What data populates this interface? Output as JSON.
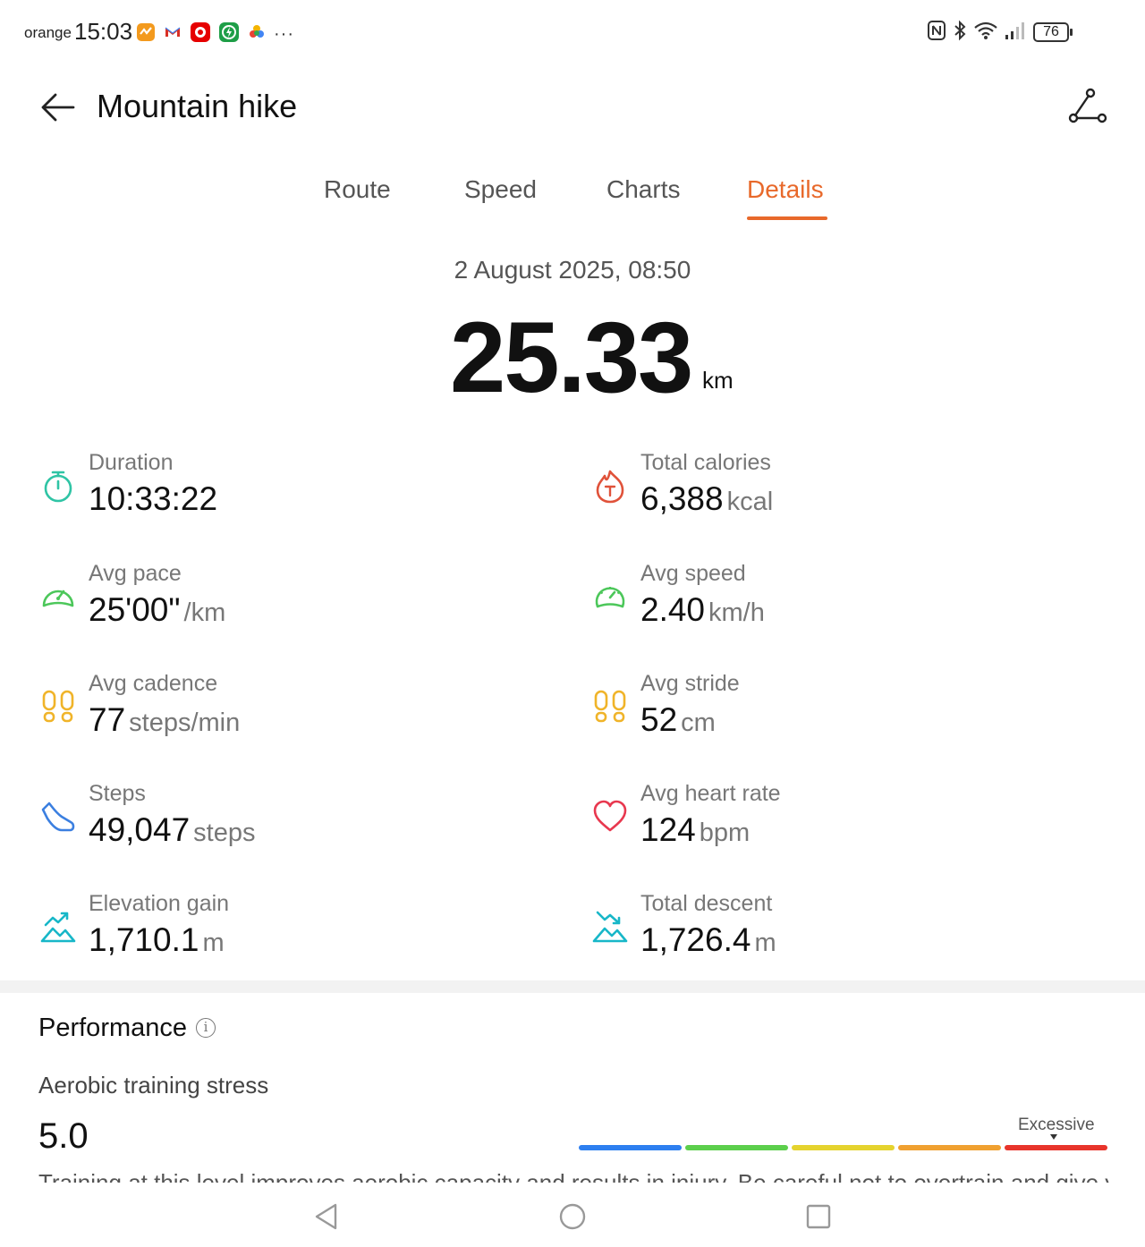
{
  "status_bar": {
    "carrier": "orange",
    "time": "15:03",
    "battery": "76",
    "notif_icons": [
      "fitness-app-icon",
      "gmail-icon",
      "vodafone-icon",
      "charging-app-icon",
      "photos-icon",
      "more-dots-icon"
    ],
    "system_icons": [
      "nfc-icon",
      "bluetooth-icon",
      "wifi-icon",
      "signal-icon"
    ]
  },
  "header": {
    "title": "Mountain hike"
  },
  "tabs": [
    {
      "label": "Route",
      "active": false
    },
    {
      "label": "Speed",
      "active": false
    },
    {
      "label": "Charts",
      "active": false
    },
    {
      "label": "Details",
      "active": true
    }
  ],
  "summary": {
    "date": "2 August 2025, 08:50",
    "distance": "25.33",
    "distance_unit": "km"
  },
  "metrics": [
    {
      "key": "duration",
      "label": "Duration",
      "value": "10:33:22",
      "unit": "",
      "icon": "stopwatch-icon",
      "color": "#2fc4a5"
    },
    {
      "key": "total-calories",
      "label": "Total calories",
      "value": "6,388",
      "unit": "kcal",
      "icon": "flame-icon",
      "color": "#e0523a"
    },
    {
      "key": "avg-pace",
      "label": "Avg pace",
      "value": "25'00\"",
      "unit": "/km",
      "icon": "gauge-icon",
      "color": "#4cc75a"
    },
    {
      "key": "avg-speed",
      "label": "Avg speed",
      "value": "2.40",
      "unit": "km/h",
      "icon": "speedometer-icon",
      "color": "#4cc75a"
    },
    {
      "key": "avg-cadence",
      "label": "Avg cadence",
      "value": "77",
      "unit": "steps/min",
      "icon": "footprints-icon",
      "color": "#f0b429"
    },
    {
      "key": "avg-stride",
      "label": "Avg stride",
      "value": "52",
      "unit": "cm",
      "icon": "footprints-icon",
      "color": "#f0b429"
    },
    {
      "key": "steps",
      "label": "Steps",
      "value": "49,047",
      "unit": "steps",
      "icon": "shoe-icon",
      "color": "#3b7fe0"
    },
    {
      "key": "avg-heart-rate",
      "label": "Avg heart rate",
      "value": "124",
      "unit": "bpm",
      "icon": "heart-icon",
      "color": "#e8384f"
    },
    {
      "key": "elevation-gain",
      "label": "Elevation gain",
      "value": "1,710.1",
      "unit": "m",
      "icon": "elevation-up-icon",
      "color": "#17b7c8"
    },
    {
      "key": "total-descent",
      "label": "Total descent",
      "value": "1,726.4",
      "unit": "m",
      "icon": "elevation-down-icon",
      "color": "#17b7c8"
    }
  ],
  "performance": {
    "title": "Performance",
    "info_icon": "info-icon",
    "aerobic_label": "Aerobic training stress",
    "aerobic_value": "5.0",
    "scale_label": "Excessive",
    "scale_colors": [
      "#2d7ff0",
      "#5ccf4c",
      "#e5d32e",
      "#f0a030",
      "#e8342b"
    ],
    "scale_level": 5,
    "cut_text": "Training at this level improves aerobic capacity and results in injury. Be careful not to overtrain and give yourself plenty of time to recover."
  },
  "nav_bar": {
    "icons": [
      "back-triangle-icon",
      "home-circle-icon",
      "recents-square-icon"
    ]
  }
}
